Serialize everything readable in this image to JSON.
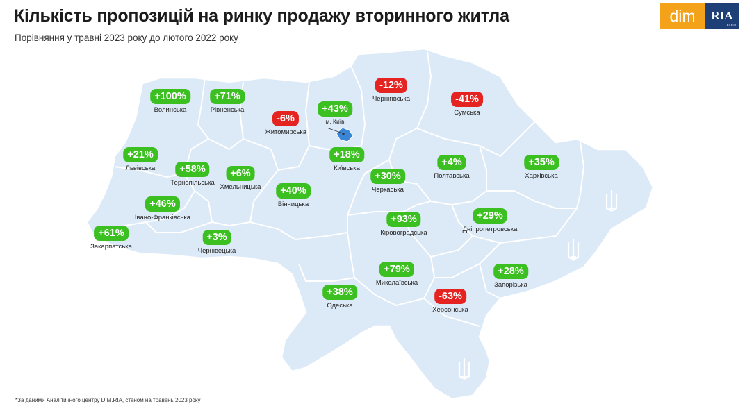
{
  "header": {
    "title": "Кількість пропозицій на ринку продажу вторинного житла",
    "subtitle": "Порівняння у травні 2023 року до лютого 2022 року"
  },
  "logo": {
    "dim_text": "dim",
    "ria_text": "RIA",
    "com_text": ".com"
  },
  "colors": {
    "positive": "#3bbf21",
    "negative": "#e52421",
    "map_fill": "#dce9f7",
    "border": "#ffffff",
    "kyiv_marker": "#3a86d6"
  },
  "kyiv_label": "м. Київ",
  "regions": [
    {
      "name": "Волинська",
      "value": "+100%",
      "sign": "pos"
    },
    {
      "name": "Рівненська",
      "value": "+71%",
      "sign": "pos"
    },
    {
      "name": "Житомирська",
      "value": "-6%",
      "sign": "neg"
    },
    {
      "name": "Київ",
      "value": "+43%",
      "sign": "pos"
    },
    {
      "name": "Чернігівська",
      "value": "-12%",
      "sign": "neg"
    },
    {
      "name": "Сумська",
      "value": "-41%",
      "sign": "neg"
    },
    {
      "name": "Львівська",
      "value": "+21%",
      "sign": "pos"
    },
    {
      "name": "Тернопільська",
      "value": "+58%",
      "sign": "pos"
    },
    {
      "name": "Хмельницька",
      "value": "+6%",
      "sign": "pos"
    },
    {
      "name": "Київська",
      "value": "+18%",
      "sign": "pos"
    },
    {
      "name": "Черкаська",
      "value": "+30%",
      "sign": "pos"
    },
    {
      "name": "Полтавська",
      "value": "+4%",
      "sign": "pos"
    },
    {
      "name": "Харківська",
      "value": "+35%",
      "sign": "pos"
    },
    {
      "name": "Вінницька",
      "value": "+40%",
      "sign": "pos"
    },
    {
      "name": "Івано-Франківська",
      "value": "+46%",
      "sign": "pos"
    },
    {
      "name": "Закарпатська",
      "value": "+61%",
      "sign": "pos"
    },
    {
      "name": "Чернівецька",
      "value": "+3%",
      "sign": "pos"
    },
    {
      "name": "Кіровоградська",
      "value": "+93%",
      "sign": "pos"
    },
    {
      "name": "Дніпропетровська",
      "value": "+29%",
      "sign": "pos"
    },
    {
      "name": "Миколаївська",
      "value": "+79%",
      "sign": "pos"
    },
    {
      "name": "Запорізька",
      "value": "+28%",
      "sign": "pos"
    },
    {
      "name": "Одеська",
      "value": "+38%",
      "sign": "pos"
    },
    {
      "name": "Херсонська",
      "value": "-63%",
      "sign": "neg"
    }
  ],
  "footnote": "*За даними Аналітичного центру DIM.RIA, станом на травень 2023 року"
}
